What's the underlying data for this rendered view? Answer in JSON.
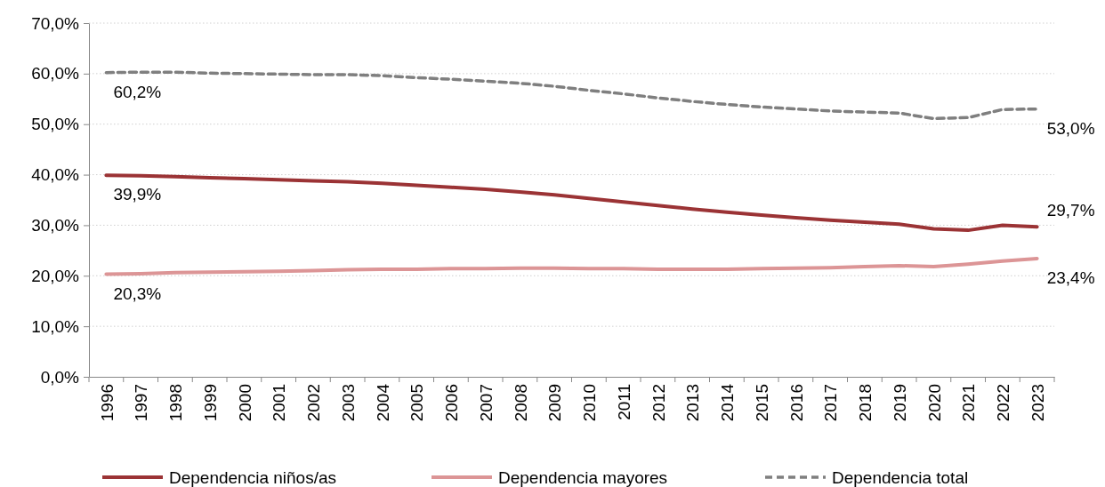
{
  "chart_data": {
    "type": "line",
    "categories": [
      "1996",
      "1997",
      "1998",
      "1999",
      "2000",
      "2001",
      "2002",
      "2003",
      "2004",
      "2005",
      "2006",
      "2007",
      "2008",
      "2009",
      "2010",
      "2011",
      "2012",
      "2013",
      "2014",
      "2015",
      "2016",
      "2017",
      "2018",
      "2019",
      "2020",
      "2021",
      "2022",
      "2023"
    ],
    "series": [
      {
        "name": "Dependencia niños/as",
        "color": "#9b3335",
        "line_style": "solid",
        "values": [
          39.9,
          39.8,
          39.6,
          39.4,
          39.2,
          39.0,
          38.8,
          38.6,
          38.3,
          37.9,
          37.5,
          37.1,
          36.6,
          36.0,
          35.3,
          34.6,
          33.9,
          33.2,
          32.6,
          32.0,
          31.5,
          31.0,
          30.6,
          30.2,
          29.3,
          29.0,
          30.0,
          29.7
        ],
        "value_labels": [
          "39,9%",
          null,
          null,
          null,
          null,
          null,
          null,
          null,
          null,
          null,
          null,
          null,
          null,
          null,
          null,
          null,
          null,
          null,
          null,
          null,
          null,
          null,
          null,
          null,
          null,
          null,
          null,
          "29,7%"
        ]
      },
      {
        "name": "Dependencia mayores",
        "color": "#dc9596",
        "line_style": "solid",
        "values": [
          20.3,
          20.4,
          20.6,
          20.7,
          20.8,
          20.9,
          21.0,
          21.2,
          21.3,
          21.3,
          21.4,
          21.4,
          21.5,
          21.5,
          21.4,
          21.4,
          21.3,
          21.3,
          21.3,
          21.4,
          21.5,
          21.6,
          21.8,
          22.0,
          21.8,
          22.3,
          22.9,
          23.4
        ],
        "value_labels": [
          "20,3%",
          null,
          null,
          null,
          null,
          null,
          null,
          null,
          null,
          null,
          null,
          null,
          null,
          null,
          null,
          null,
          null,
          null,
          null,
          null,
          null,
          null,
          null,
          null,
          null,
          null,
          null,
          "23,4%"
        ]
      },
      {
        "name": "Dependencia total",
        "color": "#7f7f7f",
        "line_style": "dashed",
        "values": [
          60.2,
          60.3,
          60.3,
          60.1,
          60.0,
          59.9,
          59.8,
          59.8,
          59.6,
          59.2,
          58.9,
          58.5,
          58.1,
          57.5,
          56.7,
          56.0,
          55.2,
          54.5,
          53.9,
          53.4,
          53.0,
          52.6,
          52.4,
          52.2,
          51.1,
          51.3,
          52.9,
          53.0
        ],
        "value_labels": [
          "60,2%",
          null,
          null,
          null,
          null,
          null,
          null,
          null,
          null,
          null,
          null,
          null,
          null,
          null,
          null,
          null,
          null,
          null,
          null,
          null,
          null,
          null,
          null,
          null,
          null,
          null,
          null,
          "53,0%"
        ]
      }
    ],
    "ylim": [
      0,
      70
    ],
    "yticks": [
      {
        "value": 0,
        "label": "0,0%"
      },
      {
        "value": 10,
        "label": "10,0%"
      },
      {
        "value": 20,
        "label": "20,0%"
      },
      {
        "value": 30,
        "label": "30,0%"
      },
      {
        "value": 40,
        "label": "40,0%"
      },
      {
        "value": 50,
        "label": "50,0%"
      },
      {
        "value": 60,
        "label": "60,0%"
      },
      {
        "value": 70,
        "label": "70,0%"
      }
    ],
    "grid": "y",
    "legend": "bottom",
    "marker": "none"
  }
}
